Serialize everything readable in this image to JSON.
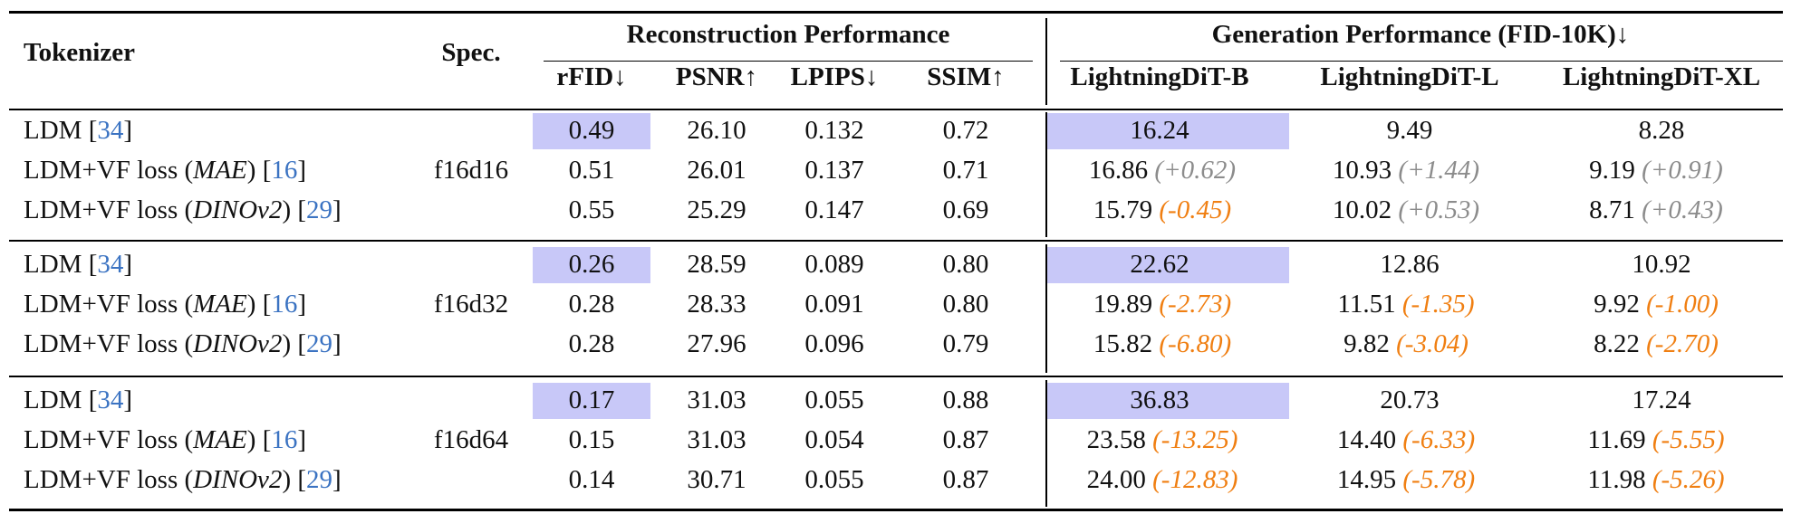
{
  "table": {
    "header": {
      "tokenizer": "Tokenizer",
      "spec": "Spec.",
      "group_recon": "Reconstruction Performance",
      "group_gen": "Generation Performance (FID-10K)↓",
      "cols": [
        "rFID↓",
        "PSNR↑",
        "LPIPS↓",
        "SSIM↑",
        "LightningDiT-B",
        "LightningDiT-L",
        "LightningDiT-XL"
      ]
    },
    "groups": [
      {
        "spec": "f16d16",
        "rows": [
          {
            "name": "LDM",
            "paren": "",
            "ref": "34",
            "rfid": "0.49",
            "psnr": "26.10",
            "lpips": "0.132",
            "ssim": "0.72",
            "b": "16.24",
            "b_delta": "",
            "l": "9.49",
            "l_delta": "",
            "xl": "8.28",
            "xl_delta": ""
          },
          {
            "name": "LDM+VF loss",
            "paren": "MAE",
            "ref": "16",
            "rfid": "0.51",
            "psnr": "26.01",
            "lpips": "0.137",
            "ssim": "0.71",
            "b": "16.86",
            "b_delta": "(+0.62)",
            "l": "10.93",
            "l_delta": "(+1.44)",
            "xl": "9.19",
            "xl_delta": "(+0.91)"
          },
          {
            "name": "LDM+VF loss",
            "paren": "DINOv2",
            "ref": "29",
            "rfid": "0.55",
            "psnr": "25.29",
            "lpips": "0.147",
            "ssim": "0.69",
            "b": "15.79",
            "b_delta": "(-0.45)",
            "l": "10.02",
            "l_delta": "(+0.53)",
            "xl": "8.71",
            "xl_delta": "(+0.43)"
          }
        ]
      },
      {
        "spec": "f16d32",
        "rows": [
          {
            "name": "LDM",
            "paren": "",
            "ref": "34",
            "rfid": "0.26",
            "psnr": "28.59",
            "lpips": "0.089",
            "ssim": "0.80",
            "b": "22.62",
            "b_delta": "",
            "l": "12.86",
            "l_delta": "",
            "xl": "10.92",
            "xl_delta": ""
          },
          {
            "name": "LDM+VF loss",
            "paren": "MAE",
            "ref": "16",
            "rfid": "0.28",
            "psnr": "28.33",
            "lpips": "0.091",
            "ssim": "0.80",
            "b": "19.89",
            "b_delta": "(-2.73)",
            "l": "11.51",
            "l_delta": "(-1.35)",
            "xl": "9.92",
            "xl_delta": "(-1.00)"
          },
          {
            "name": "LDM+VF loss",
            "paren": "DINOv2",
            "ref": "29",
            "rfid": "0.28",
            "psnr": "27.96",
            "lpips": "0.096",
            "ssim": "0.79",
            "b": "15.82",
            "b_delta": "(-6.80)",
            "l": "9.82",
            "l_delta": "(-3.04)",
            "xl": "8.22",
            "xl_delta": "(-2.70)"
          }
        ]
      },
      {
        "spec": "f16d64",
        "rows": [
          {
            "name": "LDM",
            "paren": "",
            "ref": "34",
            "rfid": "0.17",
            "psnr": "31.03",
            "lpips": "0.055",
            "ssim": "0.88",
            "b": "36.83",
            "b_delta": "",
            "l": "20.73",
            "l_delta": "",
            "xl": "17.24",
            "xl_delta": ""
          },
          {
            "name": "LDM+VF loss",
            "paren": "MAE",
            "ref": "16",
            "rfid": "0.15",
            "psnr": "31.03",
            "lpips": "0.054",
            "ssim": "0.87",
            "b": "23.58",
            "b_delta": "(-13.25)",
            "l": "14.40",
            "l_delta": "(-6.33)",
            "xl": "11.69",
            "xl_delta": "(-5.55)"
          },
          {
            "name": "LDM+VF loss",
            "paren": "DINOv2",
            "ref": "29",
            "rfid": "0.14",
            "psnr": "30.71",
            "lpips": "0.055",
            "ssim": "0.87",
            "b": "24.00",
            "b_delta": "(-12.83)",
            "l": "14.95",
            "l_delta": "(-5.78)",
            "xl": "11.98",
            "xl_delta": "(-5.26)"
          }
        ]
      }
    ],
    "colors": {
      "highlight": "#c8c8f8",
      "citation": "#3b73c2",
      "delta_worse": "#8c8c8c",
      "delta_better": "#f07f12"
    }
  }
}
